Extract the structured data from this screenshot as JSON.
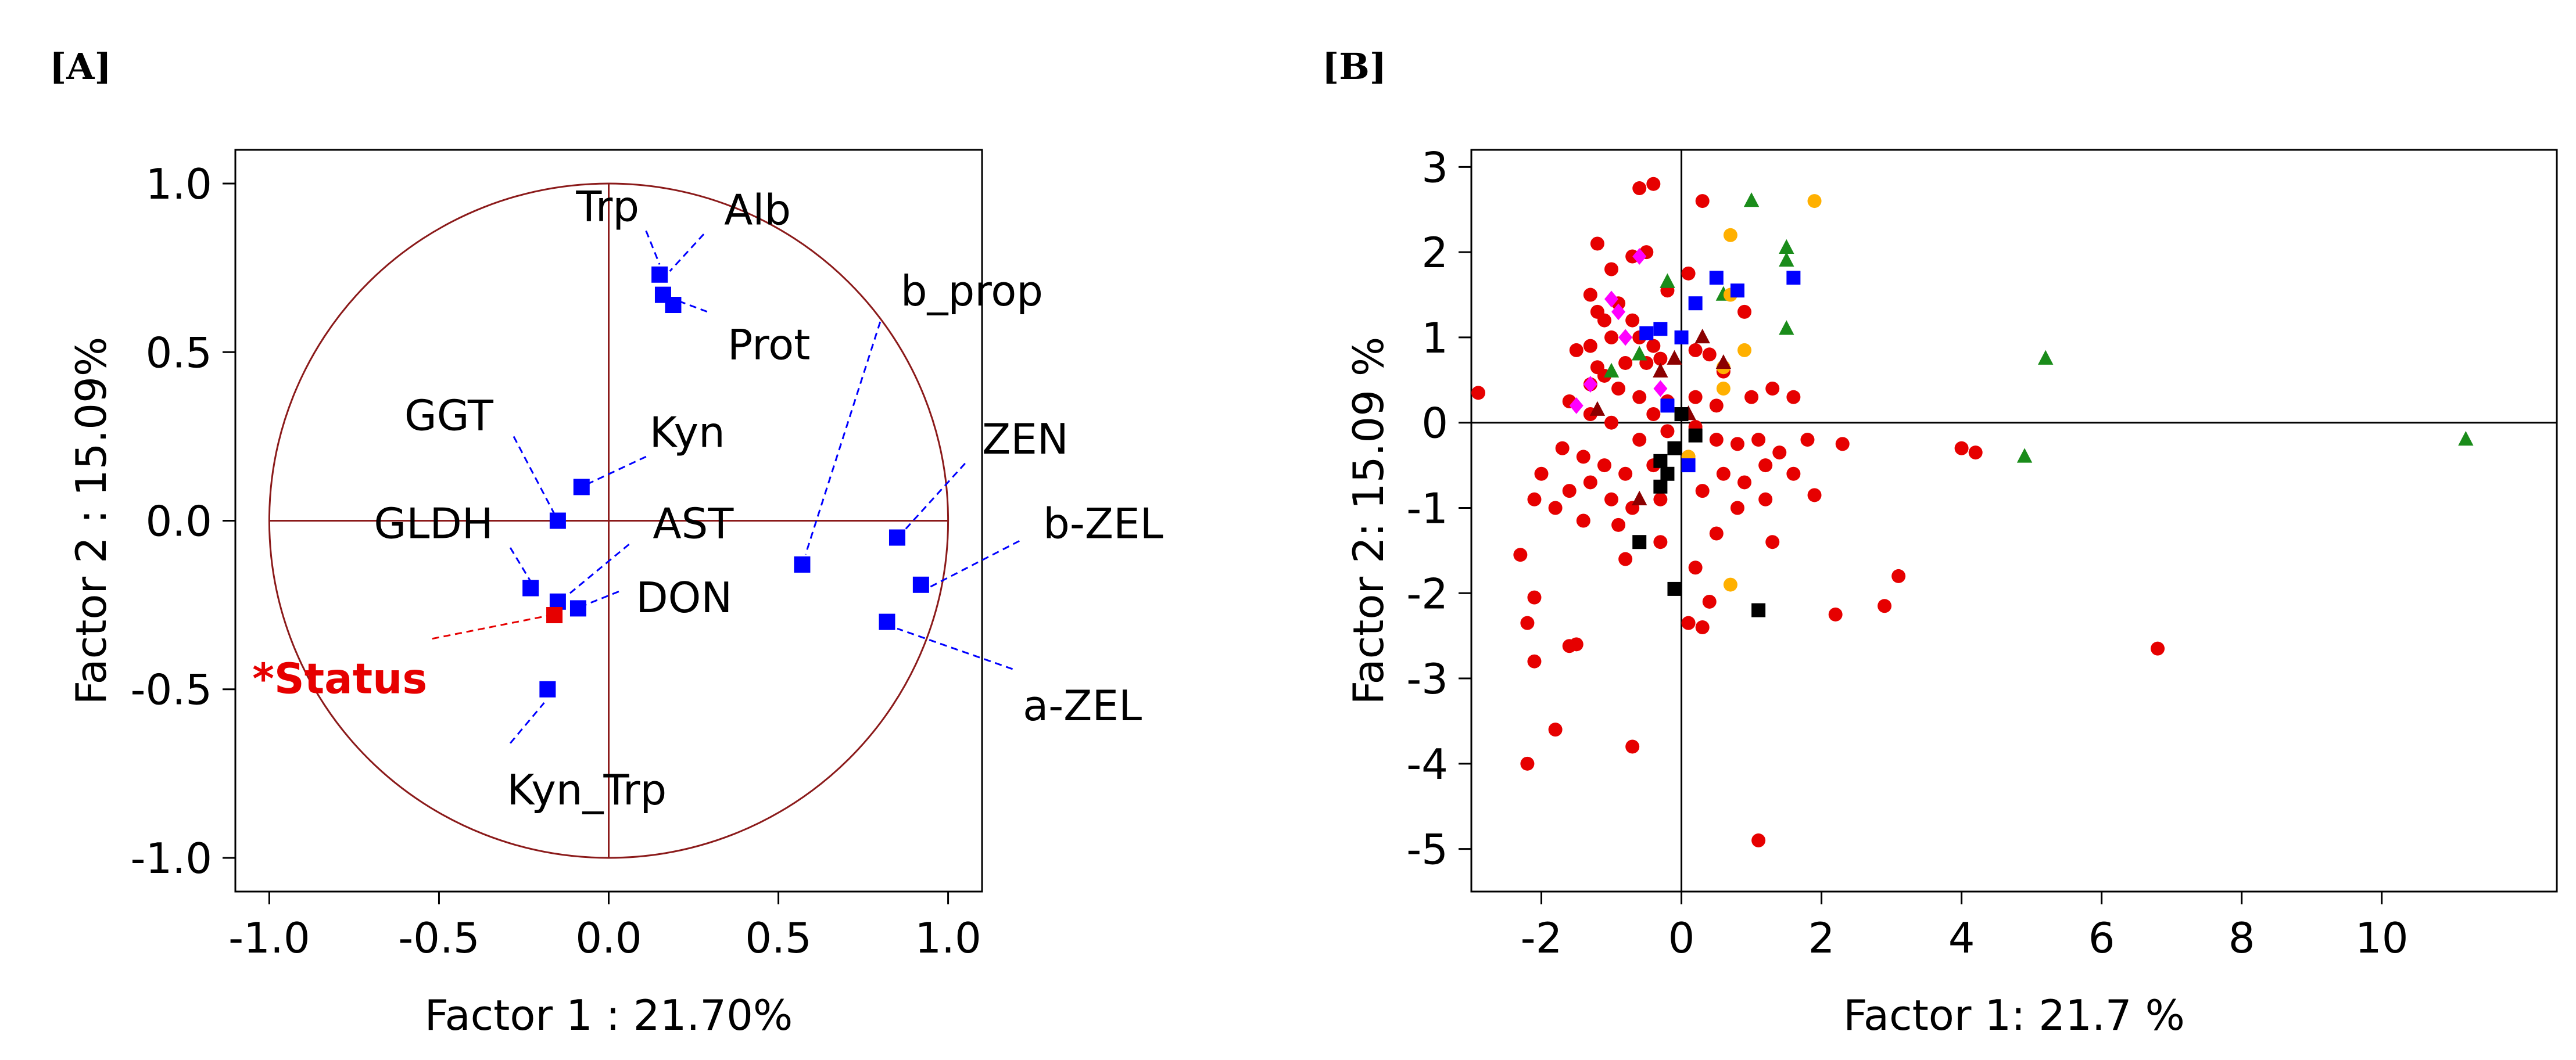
{
  "figure": {
    "panel_a_label": "[A]",
    "panel_b_label": "[B]",
    "colors": {
      "axis": "#000000",
      "circle": "#8b1a1a",
      "loading_marker": "#0000ff",
      "status_marker": "#e60000",
      "leader_line": "#0000ff",
      "status_leader": "#e60000"
    }
  },
  "chart_data": [
    {
      "id": "panel-a",
      "type": "scatter",
      "title": "",
      "xlabel": "Factor 1 : 21.70%",
      "ylabel": "Factor 2 : 15.09%",
      "xlim": [
        -1.1,
        1.1
      ],
      "ylim": [
        -1.1,
        1.1
      ],
      "xticks": [
        -1.0,
        -0.5,
        0.0,
        0.5,
        1.0
      ],
      "xtick_labels": [
        "-1.0",
        "-0.5",
        "0.0",
        "0.5",
        "1.0"
      ],
      "yticks": [
        1.0,
        0.5,
        0.0,
        -0.5,
        -1.0
      ],
      "ytick_labels": [
        "1.0",
        "0.5",
        "0.0",
        "-0.5",
        "-1.0"
      ],
      "unit_circle": true,
      "points": [
        {
          "name": "Trp",
          "label": "Trp",
          "x": 0.15,
          "y": 0.73,
          "lx": 0.09,
          "ly": 0.93,
          "anchor": "end",
          "kind": "variable"
        },
        {
          "name": "Alb",
          "label": "Alb",
          "x": 0.16,
          "y": 0.67,
          "lx": 0.34,
          "ly": 0.92,
          "anchor": "start",
          "kind": "variable"
        },
        {
          "name": "Prot",
          "label": "Prot",
          "x": 0.19,
          "y": 0.64,
          "lx": 0.35,
          "ly": 0.52,
          "anchor": "start",
          "kind": "variable"
        },
        {
          "name": "b_prop",
          "label": "b_prop",
          "x": 0.57,
          "y": -0.13,
          "lx": 0.86,
          "ly": 0.68,
          "anchor": "start",
          "kind": "variable"
        },
        {
          "name": "GGT",
          "label": "GGT",
          "x": -0.15,
          "y": 0.0,
          "lx": -0.34,
          "ly": 0.31,
          "anchor": "end",
          "kind": "variable"
        },
        {
          "name": "Kyn",
          "label": "Kyn",
          "x": -0.08,
          "y": 0.1,
          "lx": 0.12,
          "ly": 0.26,
          "anchor": "start",
          "kind": "variable"
        },
        {
          "name": "AST",
          "label": "AST",
          "x": -0.15,
          "y": -0.24,
          "lx": 0.13,
          "ly": -0.01,
          "anchor": "start",
          "kind": "variable"
        },
        {
          "name": "GLDH",
          "label": "GLDH",
          "x": -0.23,
          "y": -0.2,
          "lx": -0.34,
          "ly": -0.01,
          "anchor": "end",
          "kind": "variable"
        },
        {
          "name": "DON",
          "label": "DON",
          "x": -0.09,
          "y": -0.26,
          "lx": 0.08,
          "ly": -0.23,
          "anchor": "start",
          "kind": "variable"
        },
        {
          "name": "ZEN",
          "label": "ZEN",
          "x": 0.85,
          "y": -0.05,
          "lx": 1.1,
          "ly": 0.24,
          "anchor": "start",
          "kind": "variable"
        },
        {
          "name": "b-ZEL",
          "label": "b-ZEL",
          "x": 0.92,
          "y": -0.19,
          "lx": 1.28,
          "ly": -0.01,
          "anchor": "start",
          "kind": "variable"
        },
        {
          "name": "a-ZEL",
          "label": "a-ZEL",
          "x": 0.82,
          "y": -0.3,
          "lx": 1.22,
          "ly": -0.55,
          "anchor": "start",
          "kind": "variable"
        },
        {
          "name": "Kyn_Trp",
          "label": "Kyn_Trp",
          "x": -0.18,
          "y": -0.5,
          "lx": -0.3,
          "ly": -0.8,
          "anchor": "start",
          "kind": "variable"
        },
        {
          "name": "*Status",
          "label": "*Status",
          "x": -0.16,
          "y": -0.28,
          "lx": -1.05,
          "ly": -0.47,
          "anchor": "start",
          "kind": "supplementary"
        }
      ],
      "leaders": [
        {
          "from": [
            0.11,
            0.86
          ],
          "to": [
            0.15,
            0.76
          ]
        },
        {
          "from": [
            0.28,
            0.85
          ],
          "to": [
            0.18,
            0.74
          ]
        },
        {
          "from": [
            0.29,
            0.62
          ],
          "to": [
            0.21,
            0.65
          ]
        },
        {
          "from": [
            0.8,
            0.59
          ],
          "to": [
            0.58,
            -0.1
          ]
        },
        {
          "from": [
            -0.28,
            0.25
          ],
          "to": [
            -0.16,
            0.02
          ]
        },
        {
          "from": [
            0.11,
            0.19
          ],
          "to": [
            -0.06,
            0.11
          ]
        },
        {
          "from": [
            0.06,
            -0.07
          ],
          "to": [
            -0.12,
            -0.22
          ]
        },
        {
          "from": [
            -0.29,
            -0.08
          ],
          "to": [
            -0.23,
            -0.18
          ]
        },
        {
          "from": [
            0.03,
            -0.21
          ],
          "to": [
            -0.07,
            -0.25
          ]
        },
        {
          "from": [
            1.05,
            0.17
          ],
          "to": [
            0.87,
            -0.03
          ]
        },
        {
          "from": [
            1.21,
            -0.06
          ],
          "to": [
            0.94,
            -0.2
          ]
        },
        {
          "from": [
            1.19,
            -0.44
          ],
          "to": [
            0.85,
            -0.32
          ]
        },
        {
          "from": [
            -0.29,
            -0.66
          ],
          "to": [
            -0.19,
            -0.54
          ]
        },
        {
          "from": [
            -0.52,
            -0.35
          ],
          "to": [
            -0.17,
            -0.28
          ],
          "kind": "status"
        }
      ]
    },
    {
      "id": "panel-b",
      "type": "scatter",
      "title": "",
      "xlabel": "Factor 1: 21.7 %",
      "ylabel": "Factor 2: 15.09 %",
      "xlim": [
        -3,
        12.5
      ],
      "ylim": [
        -5.5,
        3.2
      ],
      "xticks": [
        -2,
        0,
        2,
        4,
        6,
        8,
        10
      ],
      "xtick_labels": [
        "-2",
        "0",
        "2",
        "4",
        "6",
        "8",
        "10"
      ],
      "yticks": [
        3,
        2,
        1,
        0,
        -1,
        -2,
        -3,
        -4,
        -5
      ],
      "ytick_labels": [
        "3",
        "2",
        "1",
        "0",
        "-1",
        "-2",
        "-3",
        "-4",
        "-5"
      ],
      "series": [
        {
          "name": "red-circle",
          "marker": "circle",
          "color": "#e60000",
          "points": [
            [
              -0.4,
              2.8
            ],
            [
              0.3,
              2.6
            ],
            [
              -0.6,
              2.75
            ],
            [
              -1.2,
              2.1
            ],
            [
              -0.5,
              2.0
            ],
            [
              -0.7,
              1.95
            ],
            [
              -1.0,
              1.8
            ],
            [
              -1.3,
              1.5
            ],
            [
              -1.2,
              1.3
            ],
            [
              -0.9,
              1.4
            ],
            [
              -0.7,
              1.2
            ],
            [
              -0.2,
              1.55
            ],
            [
              0.1,
              1.75
            ],
            [
              0.9,
              1.3
            ],
            [
              -1.1,
              1.2
            ],
            [
              -1.0,
              1.0
            ],
            [
              -0.6,
              1.0
            ],
            [
              -0.4,
              0.9
            ],
            [
              -1.3,
              0.9
            ],
            [
              -1.5,
              0.85
            ],
            [
              -1.2,
              0.65
            ],
            [
              -0.8,
              0.7
            ],
            [
              -0.5,
              0.7
            ],
            [
              -0.3,
              0.75
            ],
            [
              0.2,
              0.85
            ],
            [
              0.4,
              0.8
            ],
            [
              0.6,
              0.6
            ],
            [
              -1.3,
              0.45
            ],
            [
              -0.9,
              0.4
            ],
            [
              -0.6,
              0.3
            ],
            [
              -0.2,
              0.25
            ],
            [
              0.2,
              0.3
            ],
            [
              0.5,
              0.2
            ],
            [
              1.0,
              0.3
            ],
            [
              1.3,
              0.4
            ],
            [
              1.6,
              0.3
            ],
            [
              -1.6,
              0.25
            ],
            [
              -1.3,
              0.1
            ],
            [
              -1.0,
              0.0
            ],
            [
              -0.6,
              -0.2
            ],
            [
              -0.2,
              -0.1
            ],
            [
              0.2,
              -0.05
            ],
            [
              0.5,
              -0.2
            ],
            [
              0.8,
              -0.25
            ],
            [
              1.1,
              -0.2
            ],
            [
              1.4,
              -0.35
            ],
            [
              1.8,
              -0.2
            ],
            [
              2.3,
              -0.25
            ],
            [
              -1.7,
              -0.3
            ],
            [
              -1.4,
              -0.4
            ],
            [
              -1.1,
              -0.5
            ],
            [
              -0.8,
              -0.6
            ],
            [
              -0.4,
              -0.5
            ],
            [
              0.1,
              -0.4
            ],
            [
              0.6,
              -0.6
            ],
            [
              0.9,
              -0.7
            ],
            [
              1.2,
              -0.5
            ],
            [
              1.6,
              -0.6
            ],
            [
              -2.0,
              -0.6
            ],
            [
              -1.6,
              -0.8
            ],
            [
              -1.3,
              -0.7
            ],
            [
              -1.0,
              -0.9
            ],
            [
              -0.7,
              -1.0
            ],
            [
              -0.3,
              -0.9
            ],
            [
              0.3,
              -0.8
            ],
            [
              0.8,
              -1.0
            ],
            [
              1.2,
              -0.9
            ],
            [
              1.9,
              -0.85
            ],
            [
              -2.1,
              -0.9
            ],
            [
              -1.8,
              -1.0
            ],
            [
              -1.4,
              -1.15
            ],
            [
              -0.9,
              -1.2
            ],
            [
              -0.3,
              -1.4
            ],
            [
              0.5,
              -1.3
            ],
            [
              1.3,
              -1.4
            ],
            [
              -2.3,
              -1.55
            ],
            [
              -0.8,
              -1.6
            ],
            [
              0.2,
              -1.7
            ],
            [
              3.1,
              -1.8
            ],
            [
              -2.1,
              -2.05
            ],
            [
              0.4,
              -2.1
            ],
            [
              2.9,
              -2.15
            ],
            [
              -2.2,
              -2.35
            ],
            [
              0.1,
              -2.35
            ],
            [
              0.3,
              -2.4
            ],
            [
              2.2,
              -2.25
            ],
            [
              -1.5,
              -2.6
            ],
            [
              -1.6,
              -2.62
            ],
            [
              -2.1,
              -2.8
            ],
            [
              6.8,
              -2.65
            ],
            [
              -1.8,
              -3.6
            ],
            [
              -0.7,
              -3.8
            ],
            [
              -2.2,
              -4.0
            ],
            [
              1.1,
              -4.9
            ],
            [
              4.0,
              -0.3
            ],
            [
              4.2,
              -0.35
            ],
            [
              -2.9,
              0.35
            ],
            [
              -1.1,
              0.55
            ],
            [
              -0.4,
              0.1
            ]
          ]
        },
        {
          "name": "green-triangle",
          "marker": "triangle",
          "color": "#1a8c1a",
          "points": [
            [
              1.0,
              2.6
            ],
            [
              1.5,
              2.05
            ],
            [
              1.5,
              1.9
            ],
            [
              -0.2,
              1.65
            ],
            [
              -0.6,
              0.8
            ],
            [
              -1.0,
              0.6
            ],
            [
              1.5,
              1.1
            ],
            [
              5.2,
              0.75
            ],
            [
              4.9,
              -0.4
            ],
            [
              11.2,
              -0.2
            ],
            [
              0.6,
              1.5
            ]
          ]
        },
        {
          "name": "orange-circle",
          "marker": "circle",
          "color": "#ffb000",
          "points": [
            [
              1.9,
              2.6
            ],
            [
              0.7,
              2.2
            ],
            [
              0.7,
              1.5
            ],
            [
              0.9,
              0.85
            ],
            [
              0.6,
              0.65
            ],
            [
              0.6,
              0.4
            ],
            [
              0.7,
              -1.9
            ],
            [
              0.1,
              -0.4
            ]
          ]
        },
        {
          "name": "blue-square",
          "marker": "square",
          "color": "#0000ff",
          "points": [
            [
              1.6,
              1.7
            ],
            [
              0.5,
              1.7
            ],
            [
              0.8,
              1.55
            ],
            [
              0.2,
              1.4
            ],
            [
              -0.5,
              1.05
            ],
            [
              -0.3,
              1.1
            ],
            [
              0.0,
              1.0
            ],
            [
              -0.2,
              0.2
            ],
            [
              0.1,
              -0.5
            ]
          ]
        },
        {
          "name": "magenta-diamond",
          "marker": "diamond",
          "color": "#ff00ff",
          "points": [
            [
              -0.6,
              1.95
            ],
            [
              -1.0,
              1.45
            ],
            [
              -0.9,
              1.3
            ],
            [
              -0.8,
              1.0
            ],
            [
              -1.3,
              0.45
            ],
            [
              -1.5,
              0.2
            ],
            [
              -0.3,
              0.4
            ]
          ]
        },
        {
          "name": "darkred-triangle",
          "marker": "triangle",
          "color": "#8b0000",
          "points": [
            [
              -0.3,
              0.6
            ],
            [
              -0.1,
              0.75
            ],
            [
              0.3,
              1.0
            ],
            [
              0.6,
              0.7
            ],
            [
              -1.2,
              0.15
            ],
            [
              -0.6,
              -0.9
            ],
            [
              0.1,
              0.1
            ]
          ]
        },
        {
          "name": "black-square",
          "marker": "square",
          "color": "#000000",
          "points": [
            [
              0.2,
              -0.15
            ],
            [
              -0.3,
              -0.45
            ],
            [
              -0.3,
              -0.75
            ],
            [
              -0.2,
              -0.6
            ],
            [
              -0.6,
              -1.4
            ],
            [
              -0.1,
              -1.95
            ],
            [
              1.1,
              -2.2
            ],
            [
              0.0,
              0.1
            ],
            [
              -0.1,
              -0.3
            ]
          ]
        }
      ]
    }
  ]
}
